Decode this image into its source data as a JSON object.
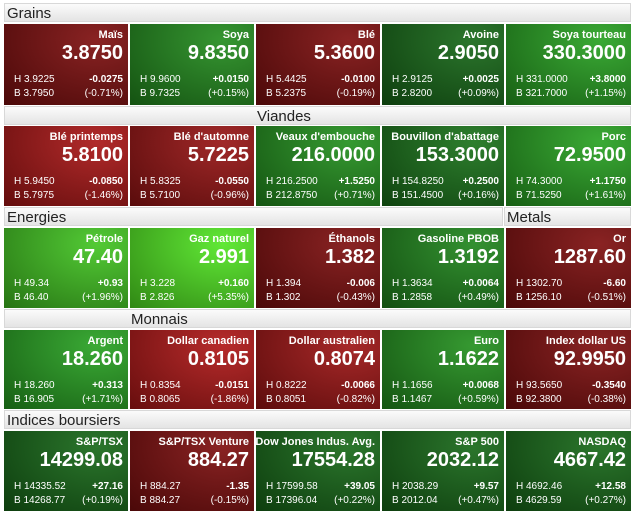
{
  "rows": [
    {
      "headers": [
        {
          "title": "Grains"
        }
      ],
      "tiles": [
        {
          "name": "Maïs",
          "value": "3.8750",
          "high": "H 3.9225",
          "low": "B 3.7950",
          "change": "-0.0275",
          "percent": "(-0.71%)",
          "color": "#7c0a0a"
        },
        {
          "name": "Soya",
          "value": "9.8350",
          "high": "H 9.9600",
          "low": "B 9.7325",
          "change": "+0.0150",
          "percent": "(+0.15%)",
          "color": "#1f8a1a"
        },
        {
          "name": "Blé",
          "value": "5.3600",
          "high": "H 5.4425",
          "low": "B 5.2375",
          "change": "-0.0100",
          "percent": "(-0.19%)",
          "color": "#7c0a0a"
        },
        {
          "name": "Avoine",
          "value": "2.9050",
          "high": "H 2.9125",
          "low": "B 2.8200",
          "change": "+0.0025",
          "percent": "(+0.09%)",
          "color": "#136614"
        },
        {
          "name": "Soya tourteau",
          "value": "330.3000",
          "high": "H 331.0000",
          "low": "B 321.7000",
          "change": "+3.8000",
          "percent": "(+1.15%)",
          "color": "#24a01e"
        }
      ]
    },
    {
      "headers": [
        {
          "title": "Viandes"
        }
      ],
      "tiles": [
        {
          "name": "Blé printemps",
          "value": "5.8100",
          "high": "H 5.9450",
          "low": "B 5.7975",
          "change": "-0.0850",
          "percent": "(-1.46%)",
          "color": "#a81212"
        },
        {
          "name": "Blé d'automne",
          "value": "5.7225",
          "high": "H 5.8325",
          "low": "B 5.7100",
          "change": "-0.0550",
          "percent": "(-0.96%)",
          "color": "#961010"
        },
        {
          "name": "Veaux d'embouche",
          "value": "216.0000",
          "high": "H 216.2500",
          "low": "B 212.8750",
          "change": "+1.5250",
          "percent": "(+0.71%)",
          "color": "#1f8e1a"
        },
        {
          "name": "Bouvillon d'abattage",
          "value": "153.3000",
          "high": "H 154.8250",
          "low": "B 151.4500",
          "change": "+0.2500",
          "percent": "(+0.16%)",
          "color": "#167016"
        },
        {
          "name": "Porc",
          "value": "72.9500",
          "high": "H 74.3000",
          "low": "B 71.5250",
          "change": "+1.1750",
          "percent": "(+1.61%)",
          "color": "#24a01e"
        }
      ]
    },
    {
      "headers": [
        {
          "title": "Energies"
        },
        {
          "title": "Metals"
        }
      ],
      "tiles": [
        {
          "name": "Pétrole",
          "value": "47.40",
          "high": "H 49.34",
          "low": "B 46.40",
          "change": "+0.93",
          "percent": "(+1.96%)",
          "color": "#3fc41e"
        },
        {
          "name": "Gaz naturel",
          "value": "2.991",
          "high": "H 3.228",
          "low": "B 2.826",
          "change": "+0.160",
          "percent": "(+5.35%)",
          "color": "#4fe61f"
        },
        {
          "name": "Éthanols",
          "value": "1.382",
          "high": "H 1.394",
          "low": "B 1.302",
          "change": "-0.006",
          "percent": "(-0.43%)",
          "color": "#7c0a0a"
        },
        {
          "name": "Gasoline PBOB",
          "value": "1.3192",
          "high": "H 1.3634",
          "low": "B 1.2858",
          "change": "+0.0064",
          "percent": "(+0.49%)",
          "color": "#1c8419"
        },
        {
          "name": "Or",
          "value": "1287.60",
          "high": "H 1302.70",
          "low": "B 1256.10",
          "change": "-6.60",
          "percent": "(-0.51%)",
          "color": "#7c0a0a"
        }
      ]
    },
    {
      "headers": [
        {
          "title": "Monnais"
        }
      ],
      "tiles": [
        {
          "name": "Argent",
          "value": "18.260",
          "high": "H 18.260",
          "low": "B 16.905",
          "change": "+0.313",
          "percent": "(+1.71%)",
          "color": "#24a01e"
        },
        {
          "name": "Dollar canadien",
          "value": "0.8105",
          "high": "H 0.8354",
          "low": "B 0.8065",
          "change": "-0.0151",
          "percent": "(-1.86%)",
          "color": "#ae1313"
        },
        {
          "name": "Dollar australien",
          "value": "0.8074",
          "high": "H 0.8222",
          "low": "B 0.8051",
          "change": "-0.0066",
          "percent": "(-0.82%)",
          "color": "#9c1010"
        },
        {
          "name": "Euro",
          "value": "1.1622",
          "high": "H 1.1656",
          "low": "B 1.1467",
          "change": "+0.0068",
          "percent": "(+0.59%)",
          "color": "#1f8e1a"
        },
        {
          "name": "Index dollar US",
          "value": "92.9950",
          "high": "H 93.5650",
          "low": "B 92.3800",
          "change": "-0.3540",
          "percent": "(-0.38%)",
          "color": "#7c0a0a"
        }
      ]
    },
    {
      "headers": [
        {
          "title": "Indices boursiers"
        }
      ],
      "tiles": [
        {
          "name": "S&P/TSX",
          "value": "14299.08",
          "high": "H 14335.52",
          "low": "B 14268.77",
          "change": "+27.16",
          "percent": "(+0.19%)",
          "color": "#136614"
        },
        {
          "name": "S&P/TSX Venture",
          "value": "884.27",
          "high": "H 884.27",
          "low": "B 884.27",
          "change": "-1.35",
          "percent": "(-0.15%)",
          "color": "#7c0a0a"
        },
        {
          "name": "Dow Jones Indus. Avg.",
          "value": "17554.28",
          "high": "H 17599.58",
          "low": "B 17396.04",
          "change": "+39.05",
          "percent": "(+0.22%)",
          "color": "#136614"
        },
        {
          "name": "S&P 500",
          "value": "2032.12",
          "high": "H 2038.29",
          "low": "B 2012.04",
          "change": "+9.57",
          "percent": "(+0.47%)",
          "color": "#136614"
        },
        {
          "name": "NASDAQ",
          "value": "4667.42",
          "high": "H 4692.46",
          "low": "B 4629.59",
          "change": "+12.58",
          "percent": "(+0.27%)",
          "color": "#136614"
        }
      ]
    }
  ]
}
